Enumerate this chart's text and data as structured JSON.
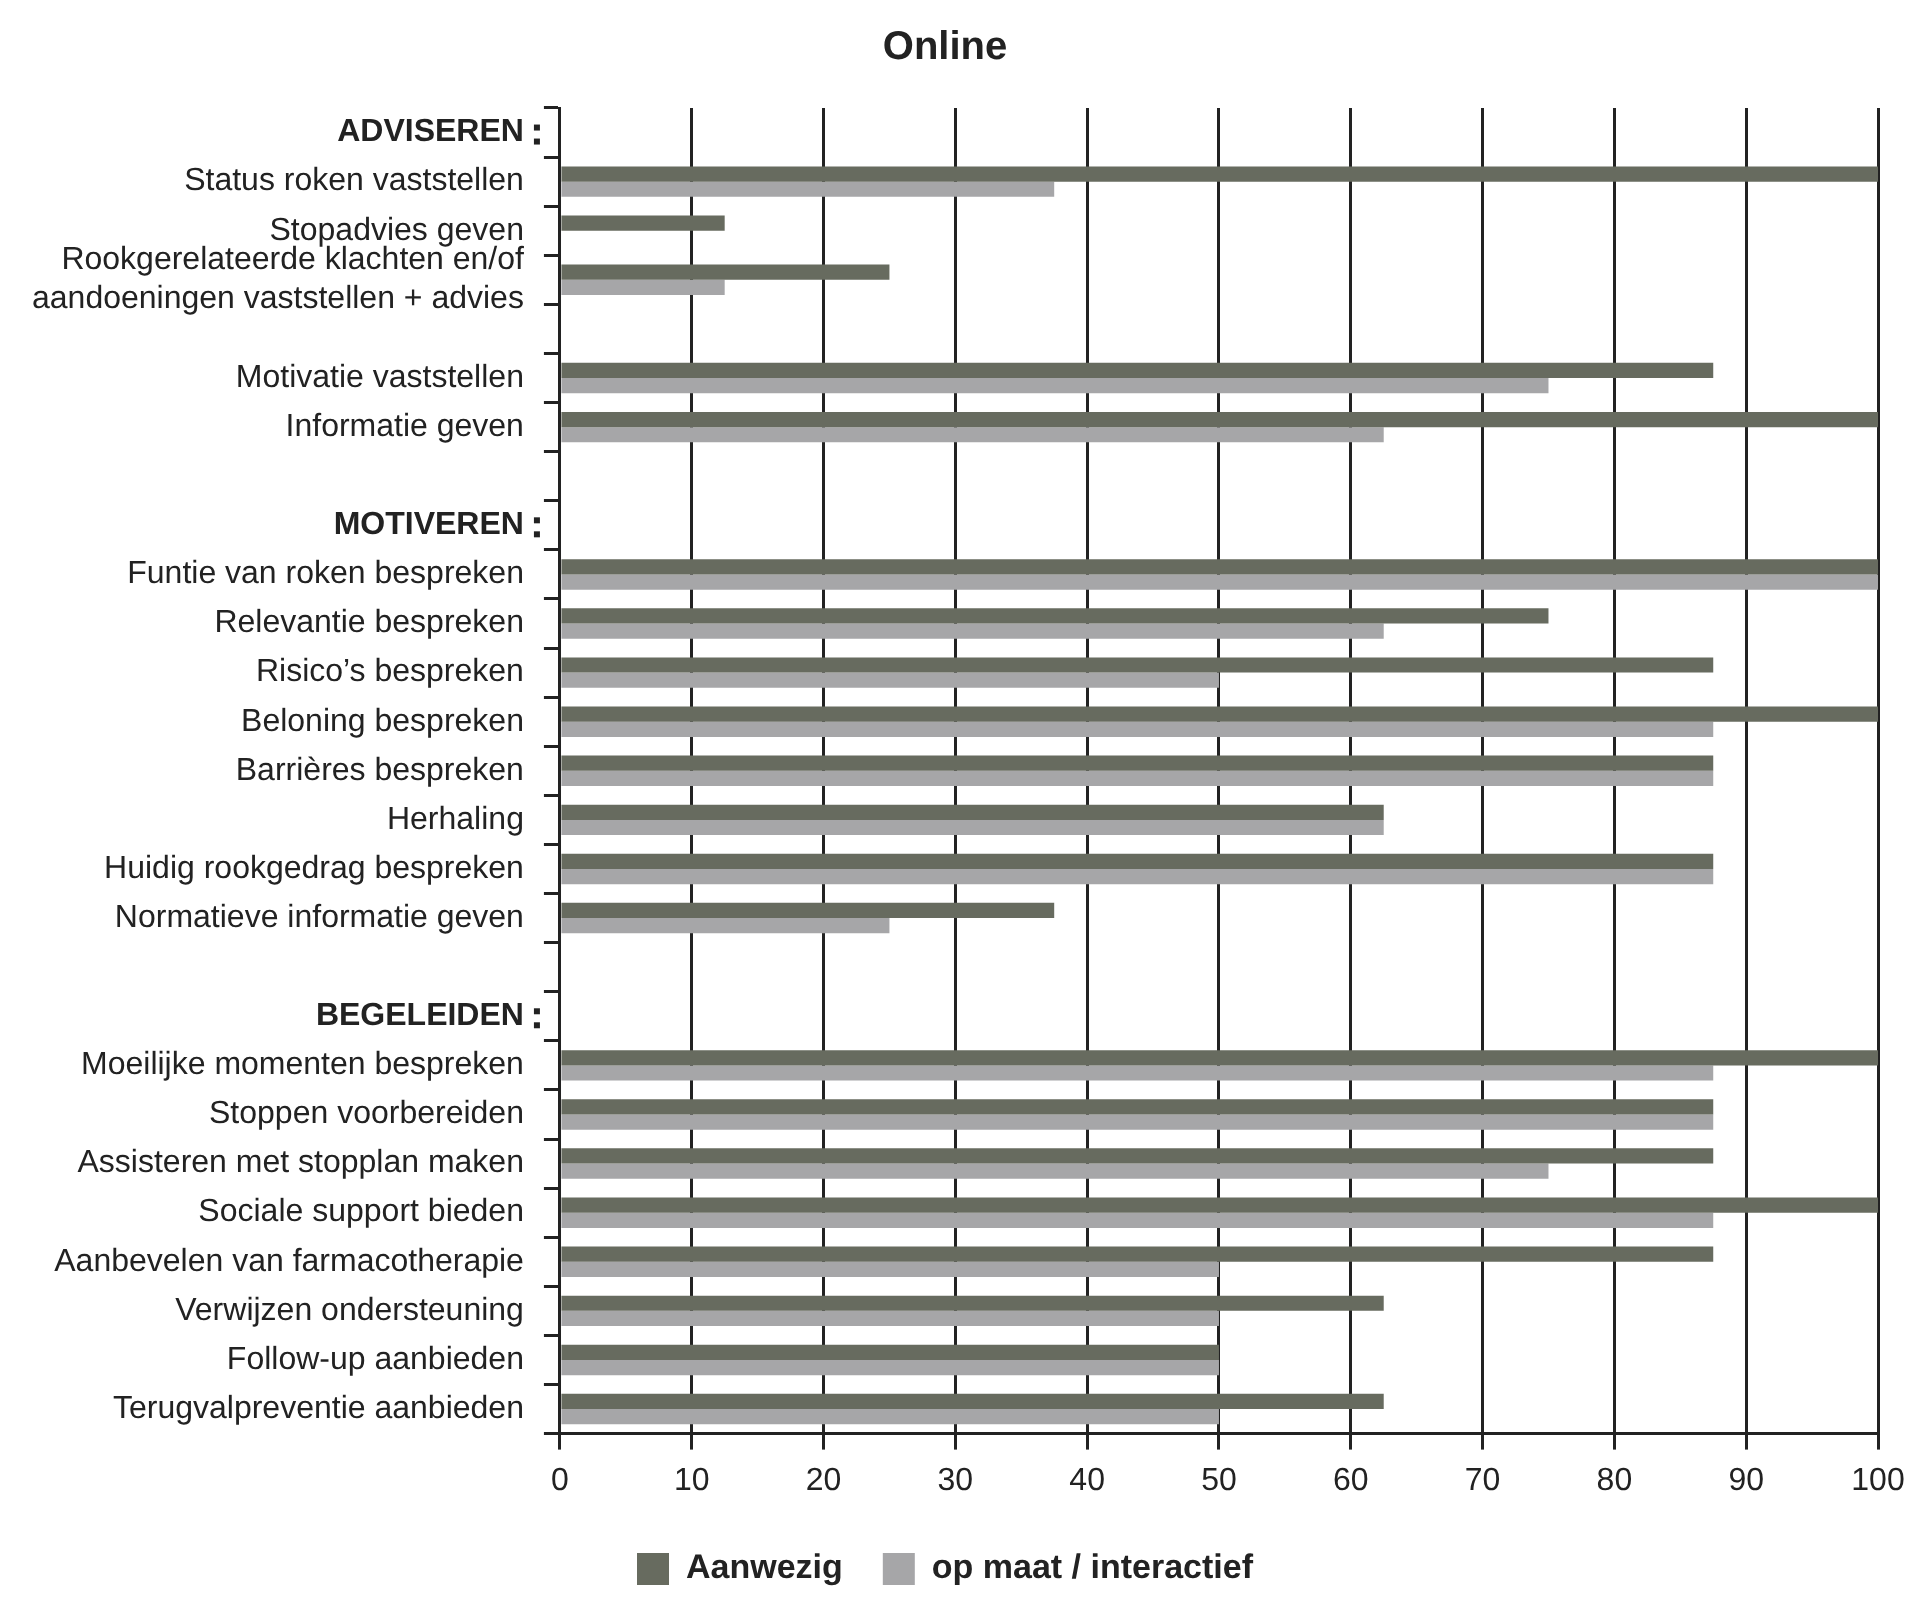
{
  "chart_data": {
    "type": "bar",
    "orientation": "horizontal",
    "title": "Online",
    "categories": [
      "ADVISEREN",
      "Status roken vaststellen",
      "Stopadvies geven",
      "Rookgerelateerde klachten en/of\naandoeningen vaststellen + advies",
      null,
      "Motivatie vaststellen",
      "Informatie geven",
      null,
      "MOTIVEREN",
      "Funtie van roken bespreken",
      "Relevantie bespreken",
      "Risico’s bespreken",
      "Beloning bespreken",
      "Barrières bespreken",
      "Herhaling",
      "Huidig rookgedrag bespreken",
      "Normatieve informatie geven",
      null,
      "BEGELEIDEN",
      "Moeilijke momenten bespreken",
      "Stoppen voorbereiden",
      "Assisteren met stopplan maken",
      "Sociale support bieden",
      "Aanbevelen van farmacotherapie",
      "Verwijzen ondersteuning",
      "Follow-up aanbieden",
      "Terugvalpreventie aanbieden"
    ],
    "series": [
      {
        "name": "Aanwezig",
        "color": "#676b5f",
        "values": [
          null,
          100,
          12.5,
          25,
          null,
          87.5,
          100,
          null,
          null,
          100,
          75,
          87.5,
          100,
          87.5,
          62.5,
          87.5,
          37.5,
          null,
          null,
          100,
          87.5,
          87.5,
          100,
          87.5,
          62.5,
          50,
          62.5
        ]
      },
      {
        "name": "op maat / interactief",
        "color": "#a6a6a8",
        "values": [
          null,
          37.5,
          null,
          12.5,
          null,
          75,
          62.5,
          null,
          null,
          100,
          62.5,
          50,
          87.5,
          87.5,
          62.5,
          87.5,
          25,
          null,
          null,
          87.5,
          87.5,
          75,
          87.5,
          50,
          50,
          50,
          50
        ]
      }
    ],
    "xlim": [
      0,
      100
    ],
    "xticks": [
      0,
      10,
      20,
      30,
      40,
      50,
      60,
      70,
      80,
      90,
      100
    ],
    "grid": "x",
    "legend": "bottom"
  }
}
